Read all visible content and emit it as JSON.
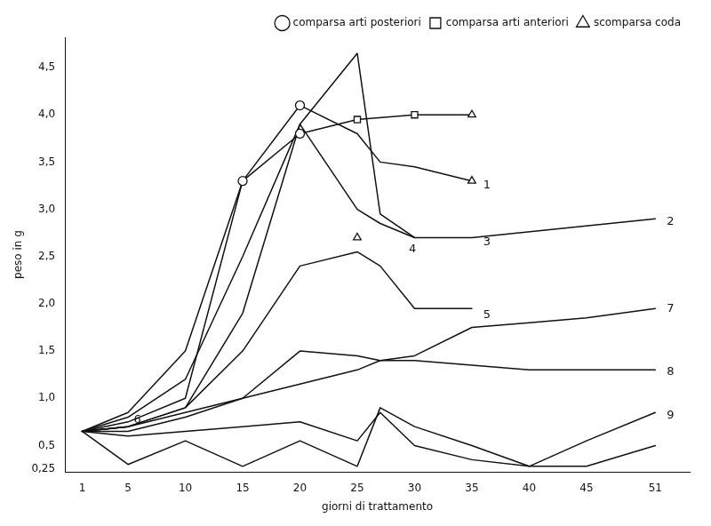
{
  "chart_data": {
    "type": "line",
    "xlabel": "giorni di trattamento",
    "ylabel": "peso in g",
    "xlim": [
      -0.5,
      54
    ],
    "ylim": [
      0.22,
      4.82
    ],
    "xticks": [
      1,
      5,
      10,
      15,
      20,
      25,
      30,
      35,
      40,
      45,
      51
    ],
    "yticks": [
      {
        "value": 0.25,
        "label": "0,25"
      },
      {
        "value": 0.5,
        "label": "0,5"
      },
      {
        "value": 1.0,
        "label": "1,0"
      },
      {
        "value": 1.5,
        "label": "1,5"
      },
      {
        "value": 2.0,
        "label": "2,0"
      },
      {
        "value": 2.5,
        "label": "2,5"
      },
      {
        "value": 3.0,
        "label": "3,0"
      },
      {
        "value": 3.5,
        "label": "3,5"
      },
      {
        "value": 4.0,
        "label": "4,0"
      },
      {
        "value": 4.5,
        "label": "4,5"
      }
    ],
    "grid": false,
    "legend": "upper right",
    "color": "#111111",
    "series": [
      {
        "x": [
          1,
          5,
          10,
          15,
          20,
          25,
          27,
          30,
          35
        ],
        "values": [
          0.65,
          0.85,
          1.5,
          3.3,
          4.1,
          3.8,
          3.5,
          3.45,
          3.3
        ]
      },
      {
        "x": [
          1,
          5,
          10,
          15,
          20,
          25,
          27,
          30,
          35,
          51
        ],
        "values": [
          0.65,
          0.8,
          1.2,
          2.5,
          3.9,
          3.0,
          2.85,
          2.7,
          2.7,
          2.9
        ]
      },
      {
        "x": [
          1,
          5,
          10,
          15,
          20,
          25,
          30,
          35
        ],
        "values": [
          0.65,
          0.75,
          1.0,
          3.3,
          3.8,
          3.95,
          4.0,
          4.0
        ]
      },
      {
        "x": [
          1,
          5,
          10,
          15,
          20,
          25,
          27,
          30
        ],
        "values": [
          0.65,
          0.7,
          0.9,
          1.9,
          3.9,
          4.65,
          2.95,
          2.7
        ]
      },
      {
        "x": [
          1,
          5,
          10,
          15,
          20,
          25,
          27,
          30,
          35
        ],
        "values": [
          0.65,
          0.7,
          0.9,
          1.5,
          2.4,
          2.55,
          2.4,
          1.95,
          1.95
        ]
      },
      {
        "x": [
          1,
          5,
          10,
          15,
          20,
          25,
          27,
          30,
          35,
          40,
          45,
          51
        ],
        "values": [
          0.65,
          0.3,
          0.55,
          0.28,
          0.55,
          0.28,
          0.9,
          0.7,
          0.5,
          0.28,
          0.28,
          0.5
        ]
      },
      {
        "x": [
          1,
          5,
          10,
          15,
          20,
          25,
          27,
          30,
          35,
          40,
          45,
          51
        ],
        "values": [
          0.65,
          0.7,
          0.85,
          1.0,
          1.15,
          1.3,
          1.4,
          1.45,
          1.75,
          1.8,
          1.85,
          1.95
        ]
      },
      {
        "x": [
          1,
          5,
          10,
          15,
          20,
          25,
          27,
          30,
          35,
          40,
          45,
          51
        ],
        "values": [
          0.65,
          0.65,
          0.8,
          1.0,
          1.5,
          1.45,
          1.4,
          1.4,
          1.35,
          1.3,
          1.3,
          1.3
        ]
      },
      {
        "x": [
          1,
          5,
          10,
          15,
          20,
          25,
          27,
          30,
          35,
          40,
          45,
          51
        ],
        "values": [
          0.65,
          0.6,
          0.65,
          0.7,
          0.75,
          0.55,
          0.85,
          0.5,
          0.35,
          0.28,
          0.55,
          0.85
        ]
      },
      {
        "name": "comparsa arti posteriori",
        "type": "scatter",
        "marker": "circle",
        "x": [
          20,
          15,
          20
        ],
        "values": [
          4.1,
          3.3,
          3.8
        ]
      },
      {
        "name": "comparsa arti anteriori",
        "type": "scatter",
        "marker": "square",
        "x": [
          25,
          30
        ],
        "values": [
          3.95,
          4.0
        ]
      },
      {
        "name": "scomparsa coda",
        "type": "scatter",
        "marker": "triangle",
        "x": [
          35,
          35,
          25
        ],
        "values": [
          3.3,
          4.0,
          2.7
        ]
      }
    ],
    "annotations": [
      {
        "text": "1",
        "x": 36,
        "y": 3.25
      },
      {
        "text": "2",
        "x": 52,
        "y": 2.87
      },
      {
        "text": "3",
        "x": 36,
        "y": 2.65
      },
      {
        "text": "4",
        "x": 29.5,
        "y": 2.58
      },
      {
        "text": "5",
        "x": 36,
        "y": 1.88
      },
      {
        "text": "6",
        "x": 5.5,
        "y": 0.77
      },
      {
        "text": "7",
        "x": 52,
        "y": 1.95
      },
      {
        "text": "8",
        "x": 52,
        "y": 1.28
      },
      {
        "text": "9",
        "x": 52,
        "y": 0.82
      }
    ]
  }
}
